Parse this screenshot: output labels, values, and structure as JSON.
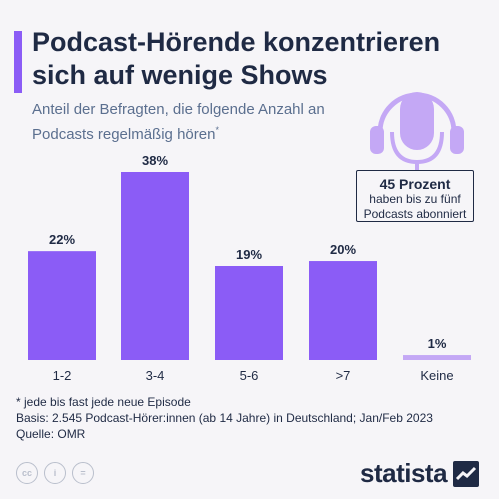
{
  "title": "Podcast-Hörende konzentrieren sich auf wenige Shows",
  "subtitle": "Anteil der Befragten, die folgende Anzahl an Podcasts regelmäßig hören",
  "subtitle_mark": "*",
  "callout": {
    "headline": "45 Prozent",
    "text": "haben bis zu fünf Podcasts abonniert"
  },
  "notes": {
    "footnote": "* jede bis fast jede neue Episode",
    "basis": "Basis: 2.545 Podcast-Hörer:innen (ab 14 Jahre) in Deutschland; Jan/Feb 2023",
    "source": "Quelle: OMR"
  },
  "license_icons": [
    "cc-icon",
    "person-icon",
    "equals-icon"
  ],
  "license_glyphs": [
    "cc",
    "i",
    "="
  ],
  "brand": "statista",
  "colors": {
    "bar": "#8b5cf6",
    "bar_light": "#c4a8f5",
    "text": "#1f2a44",
    "accent": "#8b5cf6"
  },
  "chart_data": {
    "type": "bar",
    "categories": [
      "1-2",
      "3-4",
      "5-6",
      ">7",
      "Keine"
    ],
    "values": [
      22,
      38,
      19,
      20,
      1
    ],
    "value_labels": [
      "22%",
      "38%",
      "19%",
      "20%",
      "1%"
    ],
    "ylim": [
      0,
      38
    ],
    "grid": false
  }
}
